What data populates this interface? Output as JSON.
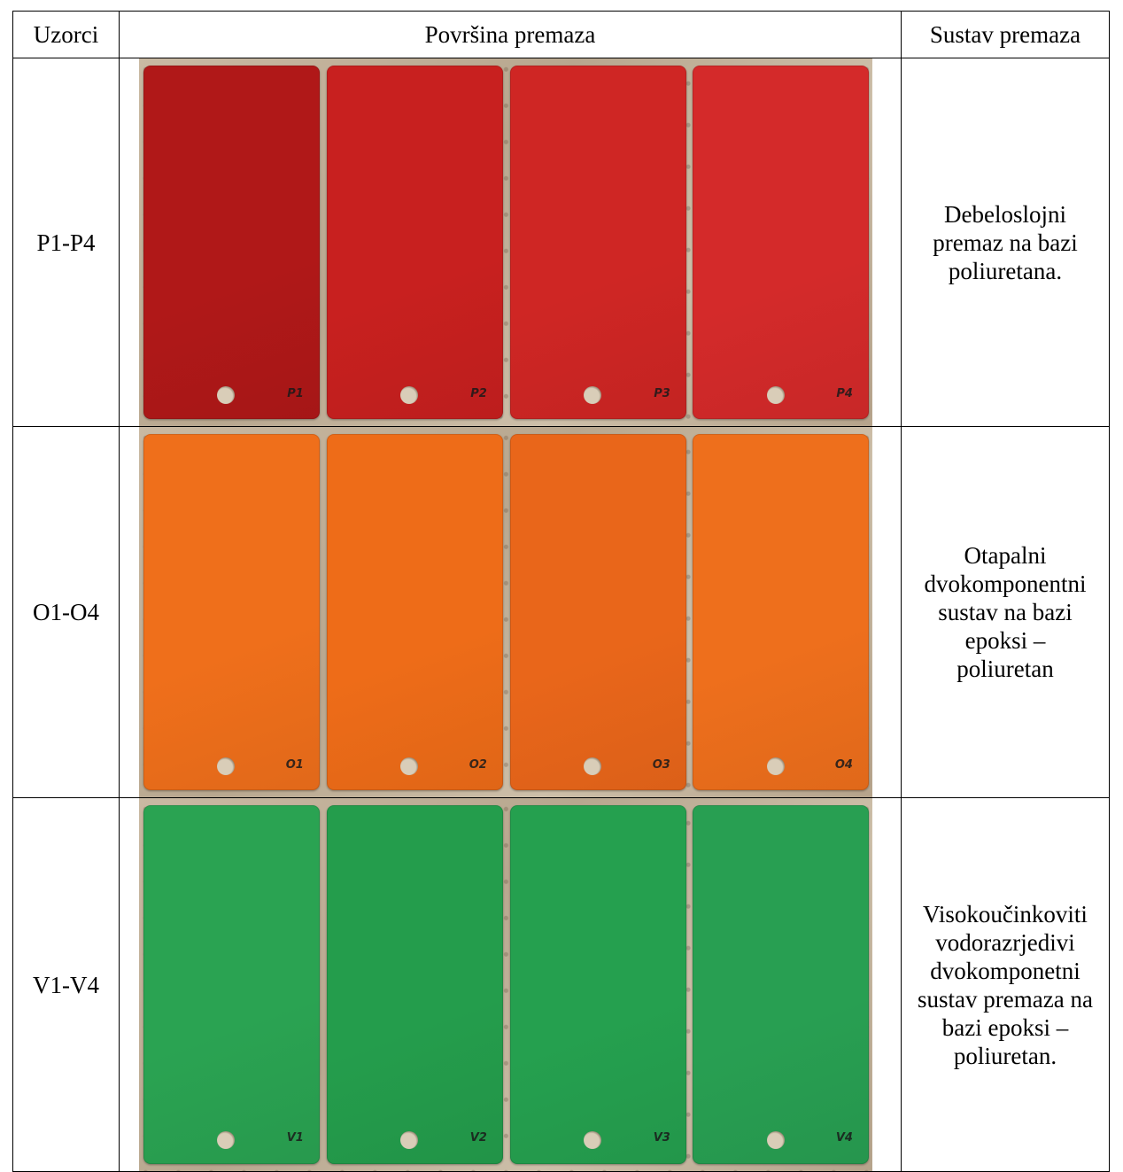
{
  "header": {
    "samples": "Uzorci",
    "surface": "Površina premaza",
    "system": "Sustav premaza"
  },
  "rows": [
    {
      "id": "P1-P4",
      "color": "#c41f1f",
      "panel_colors": [
        "#b01818",
        "#c8201f",
        "#cf2624",
        "#d42a2a"
      ],
      "panel_marks": [
        "P1",
        "P2",
        "P3",
        "P4"
      ],
      "system_lines": [
        "Debeloslojni",
        "premaz na bazi",
        "poliuretana."
      ]
    },
    {
      "id": "O1-O4",
      "color": "#ee6e1a",
      "panel_colors": [
        "#ef6f1b",
        "#ee6c18",
        "#e9661a",
        "#ee6f1c"
      ],
      "panel_marks": [
        "O1",
        "O2",
        "O3",
        "O4"
      ],
      "system_lines": [
        "Otapalni",
        "dvokomponentni",
        "sustav na bazi",
        "epoksi –",
        "poliuretan"
      ]
    },
    {
      "id": "V1-V4",
      "color": "#27a04d",
      "panel_colors": [
        "#2aa352",
        "#249d4c",
        "#25a04f",
        "#289f52"
      ],
      "panel_marks": [
        "V1",
        "V2",
        "V3",
        "V4"
      ],
      "system_lines": [
        "Visokoučinkoviti",
        "vodorazrjedivi",
        "dvokomponetni",
        "sustav premaza na",
        "bazi epoksi –",
        "poliuretan."
      ]
    }
  ]
}
